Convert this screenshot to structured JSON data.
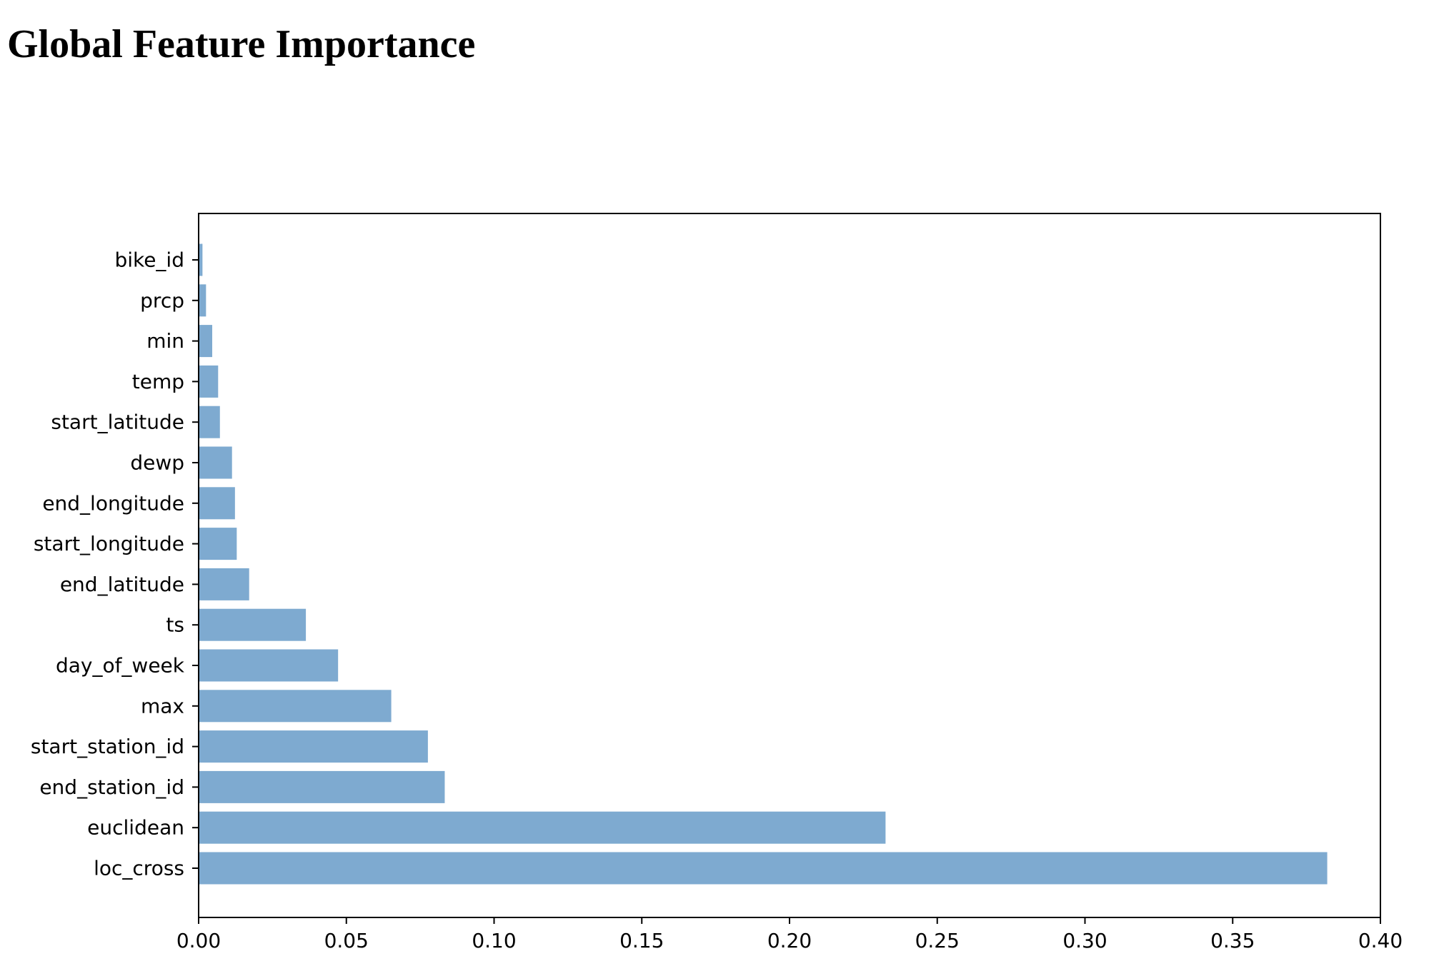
{
  "page": {
    "title": "Global Feature Importance"
  },
  "chart_data": {
    "type": "bar",
    "orientation": "horizontal",
    "title": "",
    "xlabel": "",
    "ylabel": "",
    "categories": [
      "loc_cross",
      "euclidean",
      "end_station_id",
      "start_station_id",
      "max",
      "day_of_week",
      "ts",
      "end_latitude",
      "start_longitude",
      "end_longitude",
      "dewp",
      "start_latitude",
      "temp",
      "min",
      "prcp",
      "bike_id"
    ],
    "values": [
      0.382,
      0.2325,
      0.0833,
      0.0776,
      0.0652,
      0.0472,
      0.0363,
      0.0171,
      0.0129,
      0.0123,
      0.0113,
      0.0072,
      0.0066,
      0.0046,
      0.0025,
      0.0013
    ],
    "xlim": [
      0.0,
      0.4
    ],
    "xticks": [
      "0.00",
      "0.05",
      "0.10",
      "0.15",
      "0.20",
      "0.25",
      "0.30",
      "0.35",
      "0.40"
    ],
    "xtick_values": [
      0.0,
      0.05,
      0.1,
      0.15,
      0.2,
      0.25,
      0.3,
      0.35,
      0.4
    ],
    "grid": false,
    "legend": "none",
    "bar_color": "#7eaad0",
    "axis_color": "#000000"
  }
}
